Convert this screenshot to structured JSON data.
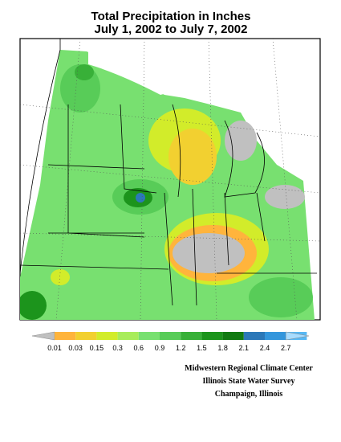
{
  "title": [
    "Total Precipitation in Inches",
    "July 1, 2002 to July 7, 2002"
  ],
  "legend": {
    "levels": [
      0.01,
      0.03,
      0.15,
      0.3,
      0.6,
      0.9,
      1.2,
      1.5,
      1.8,
      2.1,
      2.4,
      2.7
    ],
    "below_color": "#c0c0c0",
    "above_color": "#a8dcff",
    "colors": [
      "#ffb43c",
      "#f2d030",
      "#d2ec2a",
      "#a8ec5a",
      "#78e070",
      "#58cc58",
      "#38b038",
      "#1c941c",
      "#127a12",
      "#2c78b8",
      "#3496dc",
      "#58b8f4"
    ]
  },
  "credits": [
    "Midwestern Regional Climate Center",
    "Illinois State Water Survey",
    "Champaign, Illinois"
  ]
}
